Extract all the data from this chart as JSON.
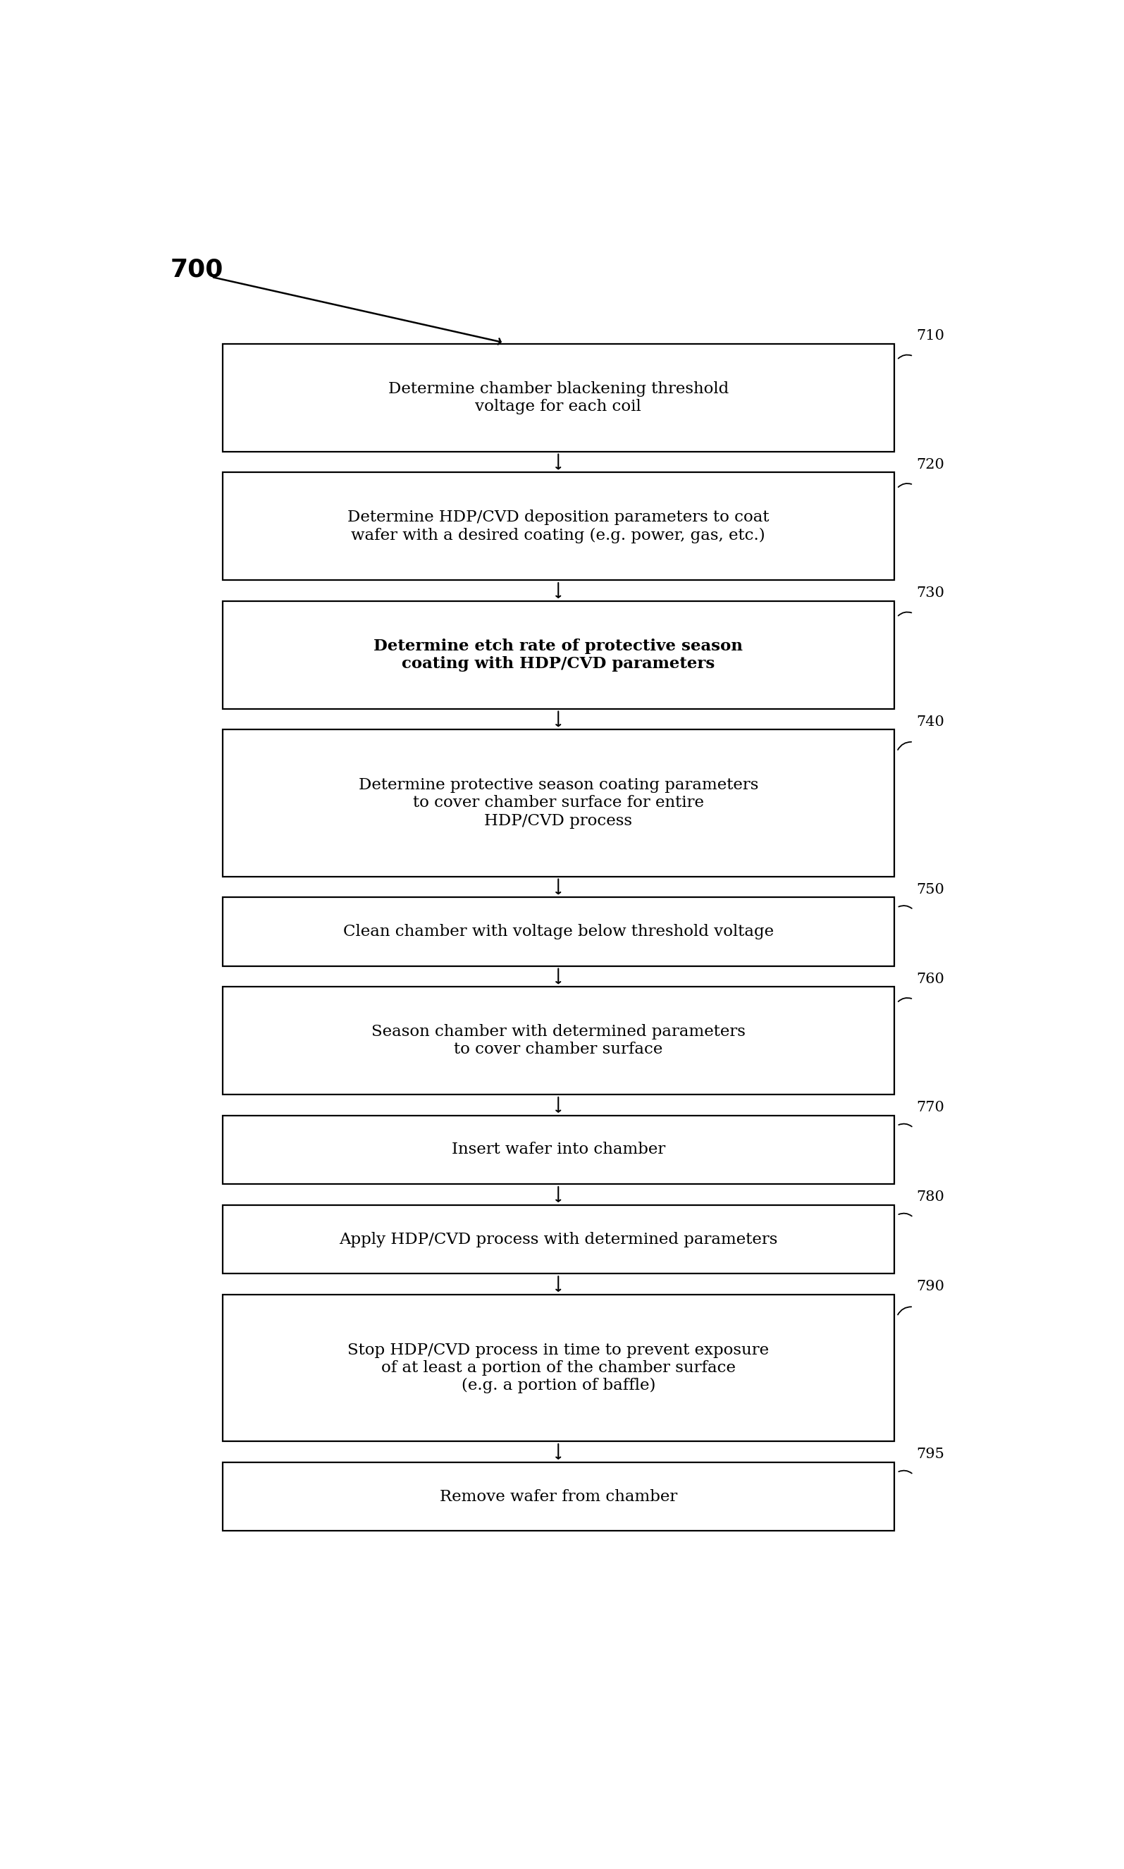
{
  "figure_label": "700",
  "boxes": [
    {
      "id": "710",
      "label": "710",
      "text": "Determine chamber blackening threshold\nvoltage for each coil",
      "bold": false,
      "n_lines": 2
    },
    {
      "id": "720",
      "label": "720",
      "text": "Determine HDP/CVD deposition parameters to coat\nwafer with a desired coating (e.g. power, gas, etc.)",
      "bold": false,
      "n_lines": 2
    },
    {
      "id": "730",
      "label": "730",
      "text": "Determine etch rate of protective season\ncoating with HDP/CVD parameters",
      "bold": true,
      "n_lines": 2
    },
    {
      "id": "740",
      "label": "740",
      "text": "Determine protective season coating parameters\nto cover chamber surface for entire\nHDP/CVD process",
      "bold": false,
      "n_lines": 3
    },
    {
      "id": "750",
      "label": "750",
      "text": "Clean chamber with voltage below threshold voltage",
      "bold": false,
      "n_lines": 1
    },
    {
      "id": "760",
      "label": "760",
      "text": "Season chamber with determined parameters\nto cover chamber surface",
      "bold": false,
      "n_lines": 2
    },
    {
      "id": "770",
      "label": "770",
      "text": "Insert wafer into chamber",
      "bold": false,
      "n_lines": 1
    },
    {
      "id": "780",
      "label": "780",
      "text": "Apply HDP/CVD process with determined parameters",
      "bold": false,
      "n_lines": 1
    },
    {
      "id": "790",
      "label": "790",
      "text": "Stop HDP/CVD process in time to prevent exposure\nof at least a portion of the chamber surface\n(e.g. a portion of baffle)",
      "bold": false,
      "n_lines": 3
    },
    {
      "id": "795",
      "label": "795",
      "text": "Remove wafer from chamber",
      "bold": false,
      "n_lines": 1
    }
  ],
  "box_color": "#ffffff",
  "box_edge_color": "#000000",
  "arrow_color": "#000000",
  "text_color": "#000000",
  "label_color": "#000000",
  "bg_color": "#ffffff",
  "font_size": 16.5,
  "label_font_size": 15,
  "fig_label_font_size": 26
}
